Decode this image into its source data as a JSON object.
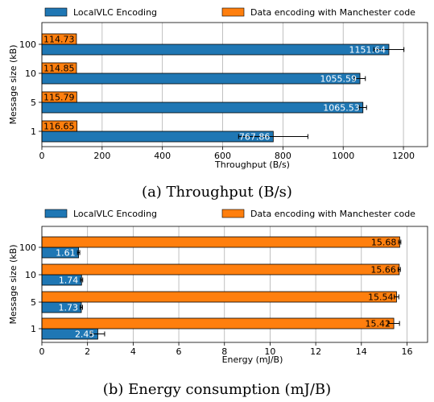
{
  "chart_data": [
    {
      "type": "bar",
      "orientation": "horizontal",
      "caption": "(a) Throughput (B/s)",
      "xlabel": "Throughput (B/s)",
      "ylabel": "Message size (kB)",
      "categories": [
        "1",
        "5",
        "10",
        "100"
      ],
      "xlim": [
        0,
        1280
      ],
      "xticks": [
        0,
        200,
        400,
        600,
        800,
        1000,
        1200
      ],
      "grid": "vertical",
      "legend_placement": "top",
      "series": [
        {
          "name": "LocalVLC Encoding",
          "color": "#1f77b4",
          "values": [
            767.86,
            1065.53,
            1055.59,
            1151.64
          ],
          "errors": [
            115,
            12,
            18,
            50
          ],
          "labels": [
            "767.86",
            "1065.53",
            "1055.59",
            "1151.64"
          ]
        },
        {
          "name": "Data encoding with Manchester code",
          "color": "#ff7f0e",
          "values": [
            116.65,
            115.79,
            114.85,
            114.73
          ],
          "errors": [
            0,
            0,
            0,
            0
          ],
          "labels": [
            "116.65",
            "115.79",
            "114.85",
            "114.73"
          ]
        }
      ]
    },
    {
      "type": "bar",
      "orientation": "horizontal",
      "caption": "(b) Energy consumption (mJ/B)",
      "xlabel": "Energy (mJ/B)",
      "ylabel": "Message size (kB)",
      "categories": [
        "1",
        "5",
        "10",
        "100"
      ],
      "xlim": [
        0,
        16.9
      ],
      "xticks": [
        0,
        2,
        4,
        6,
        8,
        10,
        12,
        14,
        16
      ],
      "grid": "vertical",
      "legend_placement": "top",
      "series": [
        {
          "name": "LocalVLC Encoding",
          "color": "#1f77b4",
          "values": [
            2.45,
            1.73,
            1.74,
            1.61
          ],
          "errors": [
            0.3,
            0.05,
            0.05,
            0.05
          ],
          "labels": [
            "2.45",
            "1.73",
            "1.74",
            "1.61"
          ]
        },
        {
          "name": "Data encoding with Manchester code",
          "color": "#ff7f0e",
          "values": [
            15.42,
            15.54,
            15.66,
            15.68
          ],
          "errors": [
            0.25,
            0.1,
            0.05,
            0.05
          ],
          "labels": [
            "15.42",
            "15.54",
            "15.66",
            "15.68"
          ]
        }
      ]
    }
  ]
}
